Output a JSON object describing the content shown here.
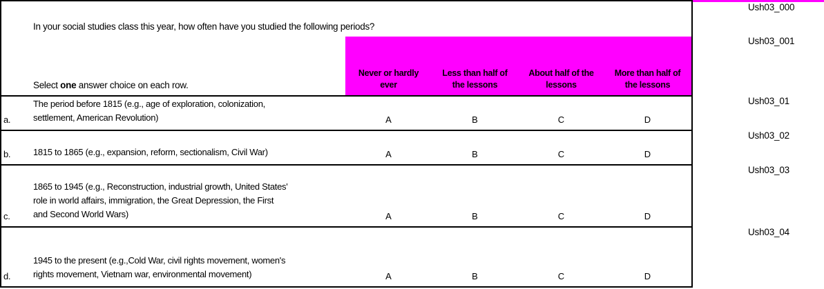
{
  "colors": {
    "header_background": "#FF00FF",
    "border": "#000000",
    "text": "#000000",
    "page_background": "#FFFFFF"
  },
  "question": {
    "stem": "In your social studies class this year, how often have you studied the following periods?",
    "stem_var_label": "Ush03_000",
    "instruction": {
      "prefix": "Select ",
      "bold": "one",
      "suffix": " answer choice on each row."
    }
  },
  "answer_header": {
    "var_label": "Ush03_001",
    "options": [
      "Never or hardly\never",
      "Less than half of\nthe lessons",
      "About half of the\nlessons",
      "More than half of\nthe lessons"
    ]
  },
  "rows": [
    {
      "letter": "a.",
      "var_label": "Ush03_01",
      "text": "The period before 1815 (e.g., age of exploration, colonization,\nsettlement, American Revolution)",
      "choices": [
        "A",
        "B",
        "C",
        "D"
      ]
    },
    {
      "letter": "b.",
      "var_label": "Ush03_02",
      "text": "1815 to 1865 (e.g., expansion, reform, sectionalism, Civil War)",
      "choices": [
        "A",
        "B",
        "C",
        "D"
      ]
    },
    {
      "letter": "c.",
      "var_label": "Ush03_03",
      "text": "1865 to 1945 (e.g., Reconstruction, industrial growth, United States'\nrole in world affairs, immigration, the Great Depression, the First\nand Second World Wars)",
      "choices": [
        "A",
        "B",
        "C",
        "D"
      ]
    },
    {
      "letter": "d.",
      "var_label": "Ush03_04",
      "text": "1945 to the present (e.g.,Cold War, civil rights movement, women's\nrights movement, Vietnam war, environmental movement)",
      "choices": [
        "A",
        "B",
        "C",
        "D"
      ]
    }
  ]
}
